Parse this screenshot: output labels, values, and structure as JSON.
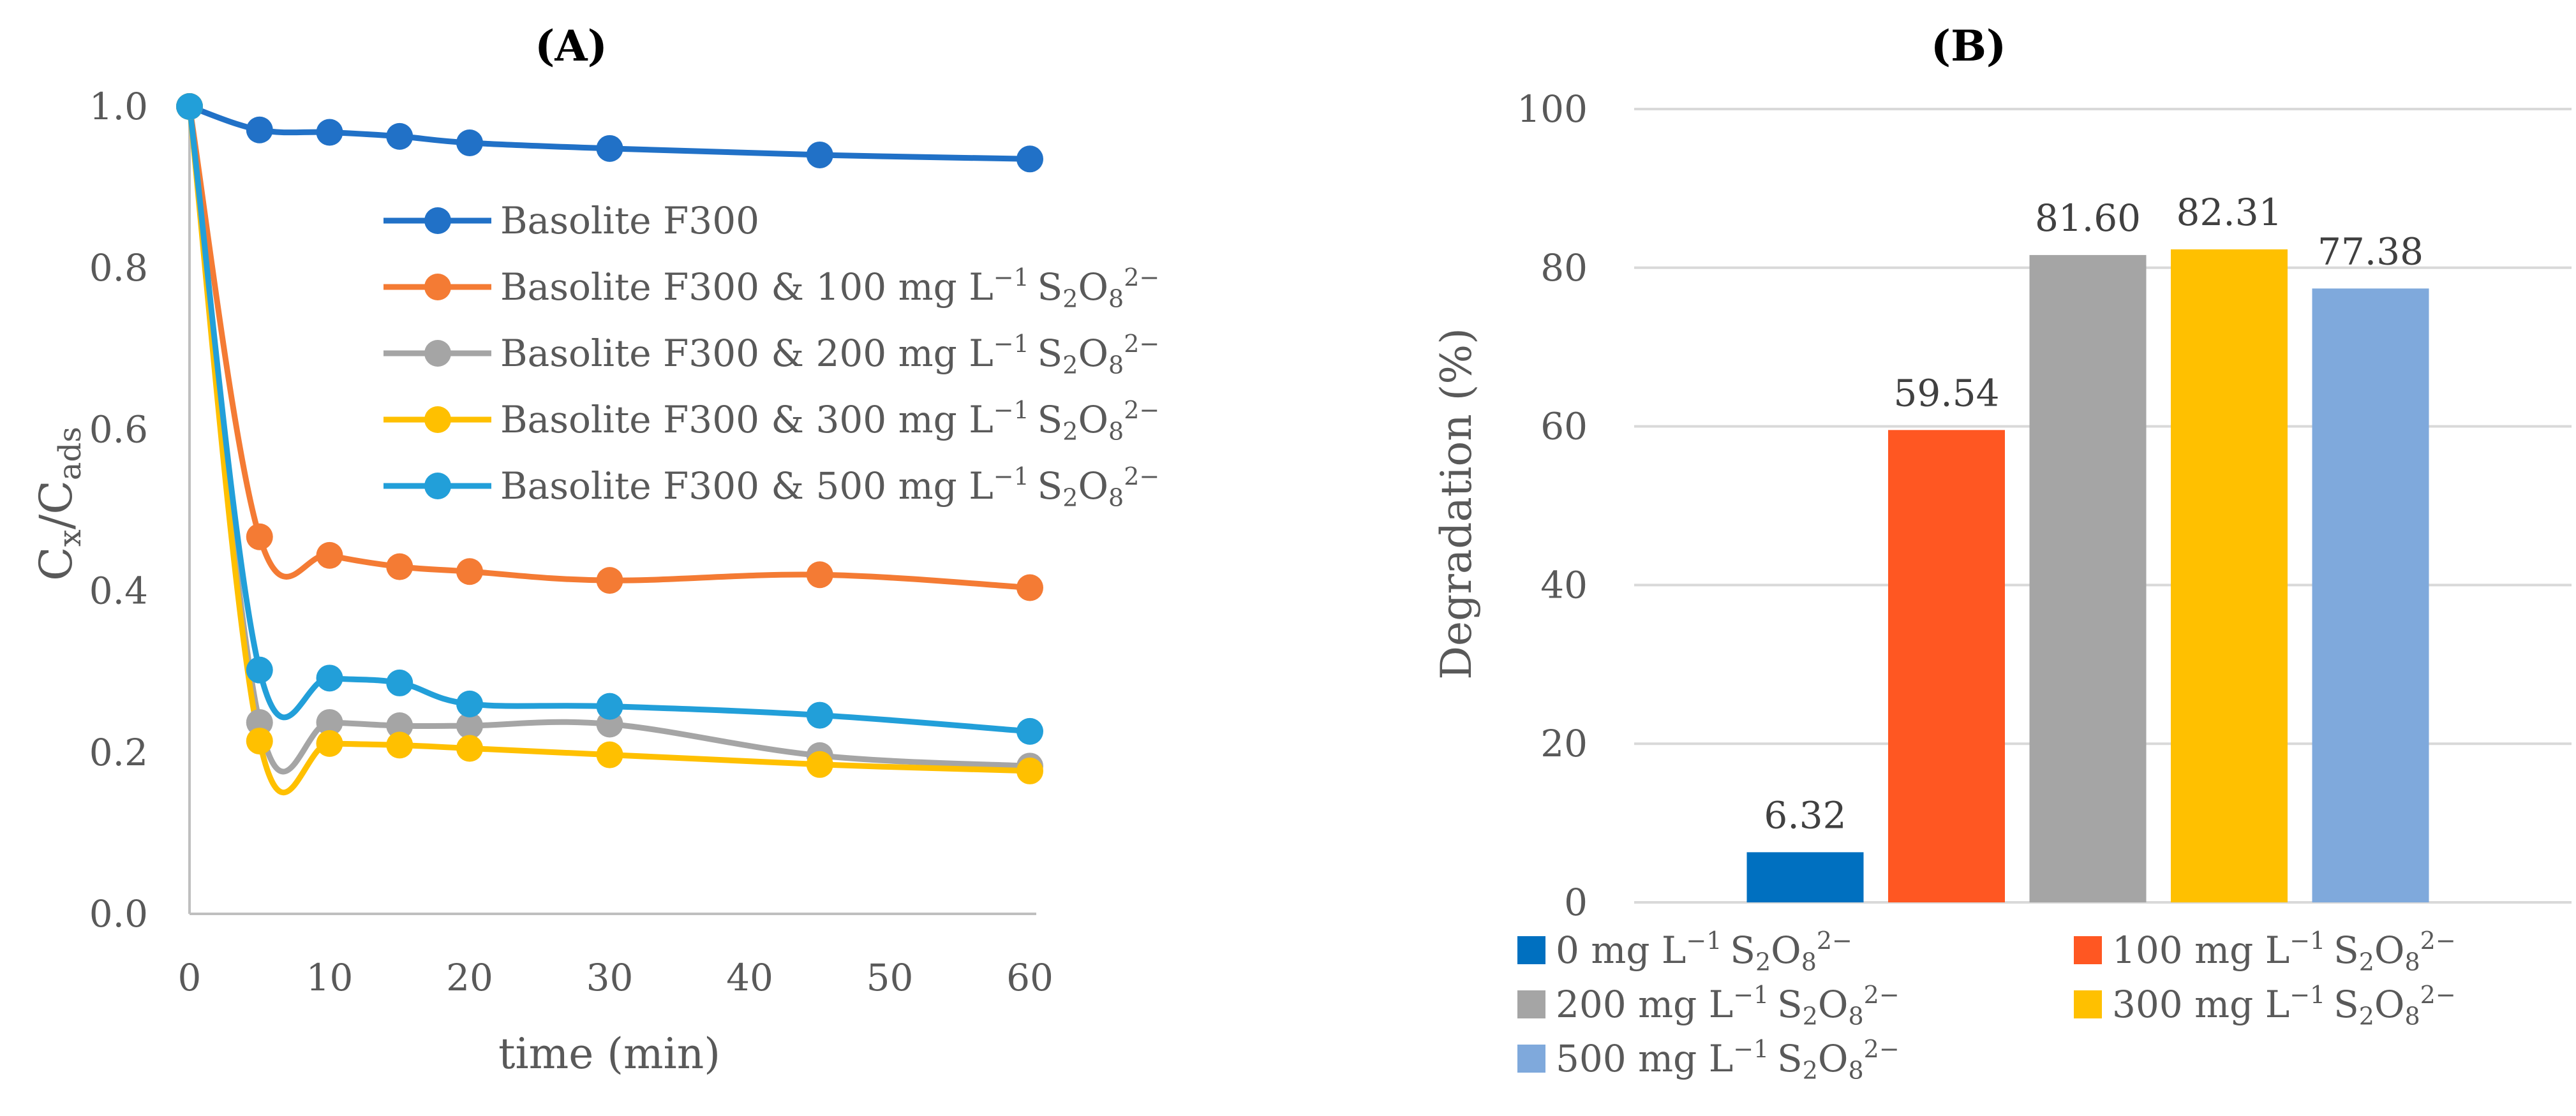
{
  "chart_data": [
    {
      "panel_label": "A",
      "type": "line",
      "xlabel": "time (min)",
      "ylabel": "Cx/Cads",
      "ylabel_parts": {
        "base1": "C",
        "sub1": "x",
        "sep": "/C",
        "sub2": "ads"
      },
      "xlim": [
        0,
        60
      ],
      "ylim": [
        0.0,
        1.0
      ],
      "xticks": [
        "0",
        "10",
        "20",
        "30",
        "40",
        "50",
        "60"
      ],
      "yticks": [
        "0.0",
        "0.2",
        "0.4",
        "0.6",
        "0.8",
        "1.0"
      ],
      "grid": false,
      "legend_position": "top-right",
      "x": [
        0,
        5,
        10,
        15,
        20,
        30,
        45,
        60
      ],
      "series": [
        {
          "name": "Basolite F300",
          "legend_text": "Basolite F300",
          "color": "#2171c7",
          "values": [
            1.0,
            0.971,
            0.968,
            0.963,
            0.955,
            0.948,
            0.94,
            0.935
          ]
        },
        {
          "name": "Basolite F300 & 100 mg L⁻¹ S₂O₈²⁻",
          "legend_text": "Basolite F300 & 100 mg L",
          "color": "#f47b34",
          "values": [
            1.0,
            0.467,
            0.444,
            0.43,
            0.424,
            0.413,
            0.42,
            0.404
          ]
        },
        {
          "name": "Basolite F300 & 200 mg L⁻¹ S₂O₈²⁻",
          "legend_text": "Basolite F300 & 200 mg L",
          "color": "#a5a5a5",
          "values": [
            1.0,
            0.237,
            0.237,
            0.233,
            0.233,
            0.235,
            0.196,
            0.183
          ]
        },
        {
          "name": "Basolite F300 & 300 mg L⁻¹ S₂O₈²⁻",
          "legend_text": "Basolite F300 & 300 mg L",
          "color": "#ffc000",
          "values": [
            1.0,
            0.214,
            0.211,
            0.209,
            0.205,
            0.197,
            0.185,
            0.177
          ]
        },
        {
          "name": "Basolite F300 & 500 mg L⁻¹ S₂O₈²⁻",
          "legend_text": "Basolite F300 & 500 mg L",
          "color": "#229fd9",
          "values": [
            1.0,
            0.302,
            0.292,
            0.286,
            0.26,
            0.257,
            0.246,
            0.226
          ]
        }
      ]
    },
    {
      "panel_label": "B",
      "type": "bar",
      "ylabel": "Degradation (%)",
      "ylim": [
        0,
        100
      ],
      "yticks": [
        "0",
        "20",
        "40",
        "60",
        "80",
        "100"
      ],
      "grid": true,
      "legend_position": "bottom",
      "categories": [
        "0 mg L⁻¹ S₂O₈²⁻",
        "100 mg L⁻¹ S₂O₈²⁻",
        "200 mg L⁻¹ S₂O₈²⁻",
        "300 mg L⁻¹ S₂O₈²⁻",
        "500 mg L⁻¹ S₂O₈²⁻"
      ],
      "legend_texts": [
        "0 mg L",
        "100 mg L",
        "200 mg L",
        "300 mg L",
        "500 mg L"
      ],
      "values": [
        6.32,
        59.54,
        81.6,
        82.31,
        77.38
      ],
      "value_labels": [
        "6.32",
        "59.54",
        "81.60",
        "82.31",
        "77.38"
      ],
      "colors": [
        "#0070c0",
        "#ff5722",
        "#a5a5a5",
        "#ffc000",
        "#7fa9dc"
      ]
    }
  ],
  "units": {
    "exp1": "−1",
    "s": "S",
    "sub2": "2",
    "o": "O",
    "sub8": "8",
    "sup2m": "2−"
  }
}
